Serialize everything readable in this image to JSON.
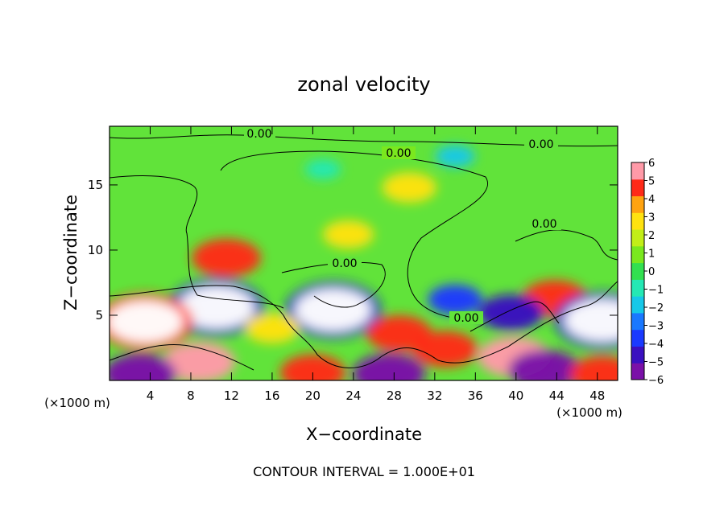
{
  "chart_data": {
    "type": "heatmap",
    "title": "zonal velocity",
    "xlabel": "X−coordinate",
    "ylabel": "Z−coordinate",
    "x_unit_label": "(×1000 m)",
    "x_unit_label_right": "(×1000 m)",
    "footer": "CONTOUR INTERVAL = 1.000E+01",
    "xlim": [
      0,
      50
    ],
    "ylim": [
      0,
      19.5
    ],
    "x_ticks": [
      4,
      8,
      12,
      16,
      20,
      24,
      28,
      32,
      36,
      40,
      44,
      48
    ],
    "x_tick_labels": [
      "4",
      "8",
      "12",
      "16",
      "20",
      "24",
      "28",
      "32",
      "36",
      "40",
      "44",
      "48"
    ],
    "y_ticks": [
      5,
      10,
      15
    ],
    "y_tick_labels": [
      "5",
      "10",
      "15"
    ],
    "contour_labels": [
      "0.00",
      "0.00",
      "0.00",
      "0.00",
      "0.00",
      "0.00"
    ],
    "colorbar": {
      "range": [
        -6,
        6
      ],
      "ticks": [
        6,
        5,
        4,
        3,
        2,
        1,
        0,
        -1,
        -2,
        -3,
        -4,
        -5,
        -6
      ],
      "tick_labels": [
        "6",
        "5",
        "4",
        "3",
        "2",
        "1",
        "0",
        "−1",
        "−2",
        "−3",
        "−4",
        "−5",
        "−6"
      ],
      "colors": [
        "#7a10a8",
        "#3a10c0",
        "#1a3aff",
        "#1a78ff",
        "#16c8e8",
        "#24e8b4",
        "#32e050",
        "#7ae81e",
        "#c2ee18",
        "#ffe210",
        "#ffa310",
        "#ff2a18",
        "#ff9aa8"
      ]
    },
    "features": [
      {
        "x": 11.5,
        "z": 9.4,
        "value": 5.5
      },
      {
        "x": 23.5,
        "z": 11.2,
        "value": 3
      },
      {
        "x": 29.5,
        "z": 14.8,
        "value": 3.5
      },
      {
        "x": 34,
        "z": 17.2,
        "value": -1.5
      },
      {
        "x": 21,
        "z": 16.2,
        "value": -1
      },
      {
        "x": 10.5,
        "z": 5.6,
        "value": -6.5
      },
      {
        "x": 22,
        "z": 5.4,
        "value": -6.5
      },
      {
        "x": 3.5,
        "z": 4.5,
        "value": 6.5
      },
      {
        "x": 8.8,
        "z": 1.4,
        "value": 6
      },
      {
        "x": 28.5,
        "z": 3.6,
        "value": 5
      },
      {
        "x": 33,
        "z": 2.4,
        "value": 5
      },
      {
        "x": 43.8,
        "z": 6.3,
        "value": 5
      },
      {
        "x": 39.5,
        "z": 5.2,
        "value": -5
      },
      {
        "x": 48.5,
        "z": 4.6,
        "value": -6.5
      },
      {
        "x": 34,
        "z": 6.2,
        "value": -3.5
      },
      {
        "x": 16,
        "z": 4,
        "value": 3.5
      },
      {
        "x": 3,
        "z": 0.5,
        "value": -6
      },
      {
        "x": 20,
        "z": 0.6,
        "value": 5
      },
      {
        "x": 27.5,
        "z": 0.5,
        "value": -6
      },
      {
        "x": 39.8,
        "z": 1.8,
        "value": 6
      },
      {
        "x": 42.8,
        "z": 0.8,
        "value": -6
      },
      {
        "x": 48.5,
        "z": 0.5,
        "value": 5
      }
    ]
  }
}
